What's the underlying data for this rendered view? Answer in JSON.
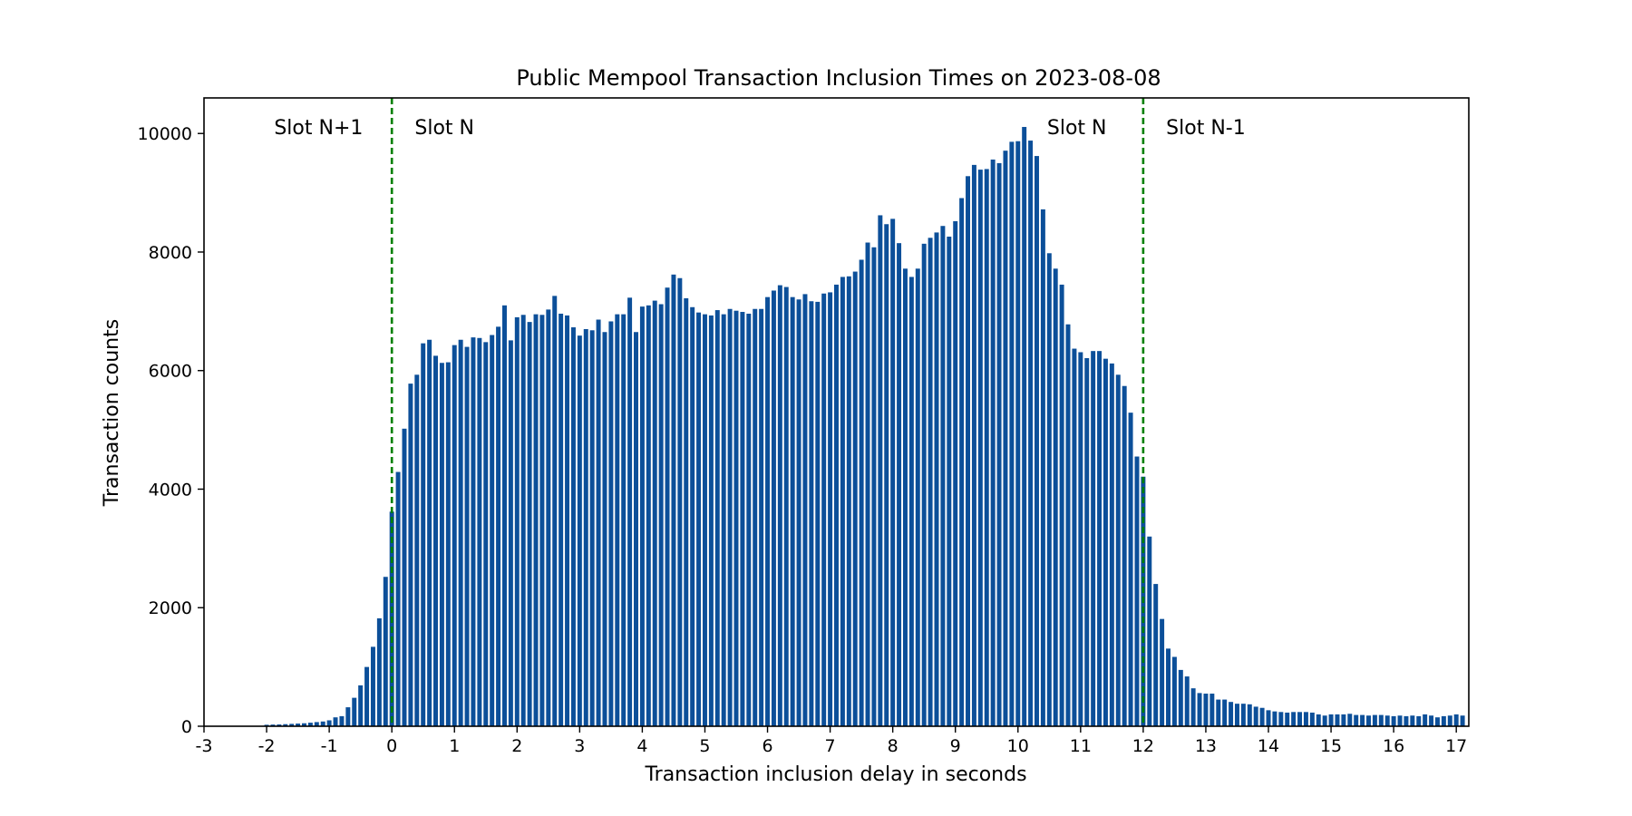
{
  "chart_data": {
    "type": "bar",
    "title": "Public Mempool Transaction Inclusion Times on 2023-08-08",
    "xlabel": "Transaction inclusion delay in seconds",
    "ylabel": "Transaction counts",
    "xlim": [
      -3,
      17.2
    ],
    "ylim": [
      0,
      10600
    ],
    "bin_width": 0.1,
    "x_ticks": [
      -3,
      -2,
      -1,
      0,
      1,
      2,
      3,
      4,
      5,
      6,
      7,
      8,
      9,
      10,
      11,
      12,
      13,
      14,
      15,
      16,
      17
    ],
    "x_tick_labels": [
      "-3",
      "-2",
      "-1",
      "0",
      "1",
      "2",
      "3",
      "4",
      "5",
      "6",
      "7",
      "8",
      "9",
      "10",
      "11",
      "12",
      "13",
      "14",
      "15",
      "16",
      "17"
    ],
    "y_ticks": [
      0,
      2000,
      4000,
      6000,
      8000,
      10000
    ],
    "y_tick_labels": [
      "0",
      "2000",
      "4000",
      "6000",
      "8000",
      "10000"
    ],
    "grid": false,
    "bar_color": "#0c4f99",
    "x": [
      -2.0,
      -1.9,
      -1.8,
      -1.7,
      -1.6,
      -1.5,
      -1.4,
      -1.3,
      -1.2,
      -1.1,
      -1.0,
      -0.9,
      -0.8,
      -0.7,
      -0.6,
      -0.5,
      -0.4,
      -0.3,
      -0.2,
      -0.1,
      0.0,
      0.1,
      0.2,
      0.3,
      0.4,
      0.5,
      0.6,
      0.7,
      0.8,
      0.9,
      1.0,
      1.1,
      1.2,
      1.3,
      1.4,
      1.5,
      1.6,
      1.7,
      1.8,
      1.9,
      2.0,
      2.1,
      2.2,
      2.3,
      2.4,
      2.5,
      2.6,
      2.7,
      2.8,
      2.9,
      3.0,
      3.1,
      3.2,
      3.3,
      3.4,
      3.5,
      3.6,
      3.7,
      3.8,
      3.9,
      4.0,
      4.1,
      4.2,
      4.3,
      4.4,
      4.5,
      4.6,
      4.7,
      4.8,
      4.9,
      5.0,
      5.1,
      5.2,
      5.3,
      5.4,
      5.5,
      5.6,
      5.7,
      5.8,
      5.9,
      6.0,
      6.1,
      6.2,
      6.3,
      6.4,
      6.5,
      6.6,
      6.7,
      6.8,
      6.9,
      7.0,
      7.1,
      7.2,
      7.3,
      7.4,
      7.5,
      7.6,
      7.7,
      7.8,
      7.9,
      8.0,
      8.1,
      8.2,
      8.3,
      8.4,
      8.5,
      8.6,
      8.7,
      8.8,
      8.9,
      9.0,
      9.1,
      9.2,
      9.3,
      9.4,
      9.5,
      9.6,
      9.7,
      9.8,
      9.9,
      10.0,
      10.1,
      10.2,
      10.3,
      10.4,
      10.5,
      10.6,
      10.7,
      10.8,
      10.9,
      11.0,
      11.1,
      11.2,
      11.3,
      11.4,
      11.5,
      11.6,
      11.7,
      11.8,
      11.9,
      12.0,
      12.1,
      12.2,
      12.3,
      12.4,
      12.5,
      12.6,
      12.7,
      12.8,
      12.9,
      13.0,
      13.1,
      13.2,
      13.3,
      13.4,
      13.5,
      13.6,
      13.7,
      13.8,
      13.9,
      14.0,
      14.1,
      14.2,
      14.3,
      14.4,
      14.5,
      14.6,
      14.7,
      14.8,
      14.9,
      15.0,
      15.1,
      15.2,
      15.3,
      15.4,
      15.5,
      15.6,
      15.7,
      15.8,
      15.9,
      16.0,
      16.1,
      16.2,
      16.3,
      16.4,
      16.5,
      16.6,
      16.7,
      16.8,
      16.9,
      17.0,
      17.1
    ],
    "values": [
      25,
      28,
      30,
      35,
      40,
      45,
      50,
      60,
      70,
      80,
      100,
      150,
      170,
      320,
      480,
      690,
      1000,
      1340,
      1820,
      2520,
      3620,
      4290,
      5020,
      5780,
      5930,
      6460,
      6520,
      6250,
      6130,
      6140,
      6430,
      6520,
      6400,
      6560,
      6550,
      6480,
      6600,
      6740,
      7100,
      6510,
      6900,
      6940,
      6820,
      6950,
      6940,
      7030,
      7260,
      6960,
      6930,
      6730,
      6590,
      6700,
      6680,
      6860,
      6650,
      6830,
      6950,
      6950,
      7230,
      6650,
      7080,
      7100,
      7180,
      7120,
      7400,
      7620,
      7560,
      7220,
      7070,
      6980,
      6950,
      6930,
      7020,
      6950,
      7040,
      7010,
      6990,
      6960,
      7040,
      7040,
      7240,
      7350,
      7440,
      7410,
      7240,
      7200,
      7290,
      7170,
      7160,
      7300,
      7320,
      7450,
      7580,
      7590,
      7670,
      7870,
      8160,
      8080,
      8620,
      8470,
      8560,
      8150,
      7720,
      7580,
      7720,
      8140,
      8240,
      8330,
      8440,
      8260,
      8520,
      8910,
      9280,
      9470,
      9390,
      9400,
      9560,
      9500,
      9710,
      9860,
      9870,
      10110,
      9880,
      9620,
      8720,
      7980,
      7720,
      7450,
      6780,
      6370,
      6310,
      6210,
      6330,
      6330,
      6200,
      6120,
      5930,
      5740,
      5290,
      4550,
      4210,
      3200,
      2400,
      1810,
      1310,
      1170,
      950,
      840,
      640,
      560,
      550,
      550,
      450,
      450,
      410,
      380,
      380,
      370,
      330,
      310,
      270,
      250,
      240,
      230,
      240,
      240,
      240,
      230,
      200,
      180,
      200,
      200,
      200,
      210,
      190,
      190,
      180,
      190,
      190,
      180,
      170,
      180,
      170,
      180,
      170,
      200,
      180,
      150,
      170,
      180,
      200,
      180
    ],
    "vlines": [
      {
        "x": 0,
        "color": "#008000",
        "style": "dashed"
      },
      {
        "x": 12,
        "color": "#008000",
        "style": "dashed"
      }
    ],
    "annotations": [
      {
        "text": "Slot N+1",
        "x": -1.17,
        "y": 10110
      },
      {
        "text": "Slot N",
        "x": 0.84,
        "y": 10110
      },
      {
        "text": "Slot N",
        "x": 10.94,
        "y": 10110
      },
      {
        "text": "Slot N-1",
        "x": 13.0,
        "y": 10110
      }
    ]
  }
}
